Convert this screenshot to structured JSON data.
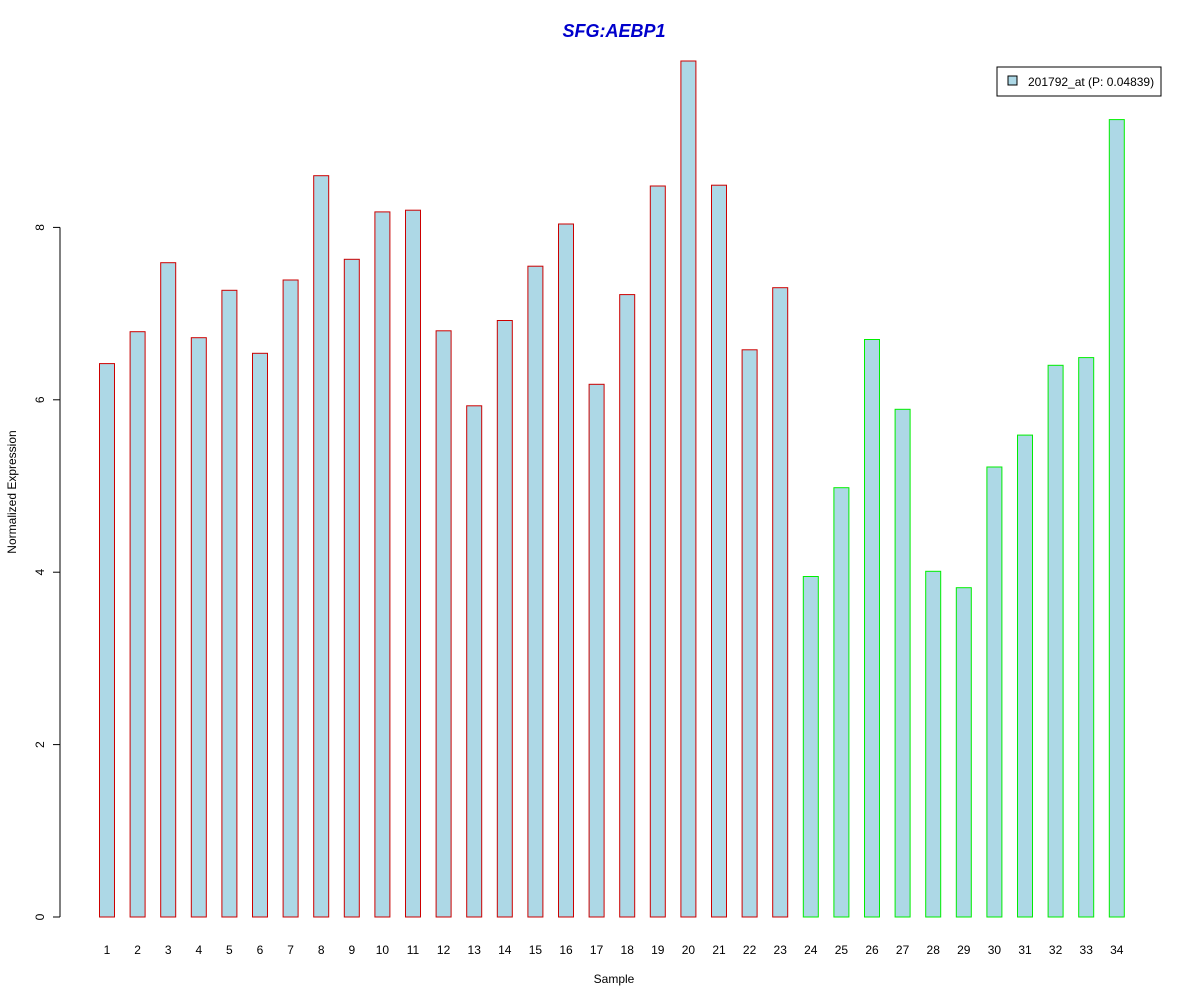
{
  "chart_data": {
    "type": "bar",
    "title": "SFG:AEBP1",
    "xlabel": "Sample",
    "ylabel": "Normalized Expression",
    "ylim": [
      0,
      10
    ],
    "yticks": [
      0,
      2,
      4,
      6,
      8
    ],
    "grid": false,
    "legend": {
      "placement": "top-right",
      "entries": [
        "201792_at (P: 0.04839)"
      ]
    },
    "categories": [
      "1",
      "2",
      "3",
      "4",
      "5",
      "6",
      "7",
      "8",
      "9",
      "10",
      "11",
      "12",
      "13",
      "14",
      "15",
      "16",
      "17",
      "18",
      "19",
      "20",
      "21",
      "22",
      "23",
      "24",
      "25",
      "26",
      "27",
      "28",
      "29",
      "30",
      "31",
      "32",
      "33",
      "34"
    ],
    "values": [
      6.42,
      6.79,
      7.59,
      6.72,
      7.27,
      6.54,
      7.39,
      8.6,
      7.63,
      8.18,
      8.2,
      6.8,
      5.93,
      6.92,
      7.55,
      8.04,
      6.18,
      7.22,
      8.48,
      9.93,
      8.49,
      6.58,
      7.3,
      3.95,
      4.98,
      6.7,
      5.89,
      4.01,
      3.82,
      5.22,
      5.59,
      6.4,
      6.49,
      9.25
    ],
    "group": [
      "a",
      "a",
      "a",
      "a",
      "a",
      "a",
      "a",
      "a",
      "a",
      "a",
      "a",
      "a",
      "a",
      "a",
      "a",
      "a",
      "a",
      "a",
      "a",
      "a",
      "a",
      "a",
      "a",
      "b",
      "b",
      "b",
      "b",
      "b",
      "b",
      "b",
      "b",
      "b",
      "b",
      "b"
    ],
    "colors": {
      "fill": "#ADD8E6",
      "border_a": "#CC0000",
      "border_b": "#00EE00",
      "title": "#0000CC"
    }
  }
}
